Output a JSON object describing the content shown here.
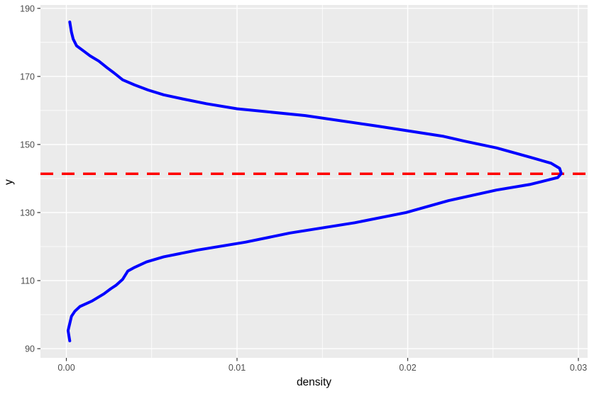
{
  "chart_data": {
    "type": "line",
    "title": "",
    "xlabel": "density",
    "ylabel": "y",
    "x_range": [
      -0.001518,
      0.030541
    ],
    "y_range": [
      87.3,
      191.0
    ],
    "x_ticks": {
      "values": [
        0.0,
        0.01,
        0.02,
        0.03
      ],
      "labels": [
        "0.00",
        "0.01",
        "0.02",
        "0.03"
      ]
    },
    "y_ticks": {
      "values": [
        90,
        110,
        130,
        150,
        170,
        190
      ],
      "labels": [
        "90",
        "110",
        "130",
        "150",
        "170",
        "190"
      ]
    },
    "x_minor_ticks": [
      0.005,
      0.015,
      0.025
    ],
    "y_minor_ticks": [
      100,
      120,
      140,
      160,
      180
    ],
    "grid": true,
    "legend": "none",
    "panel_bg": "#EBEBEB",
    "grid_color": "#FFFFFF",
    "tick_mark_color": "#333333",
    "tick_label_color": "#4D4D4D",
    "axis_title_color": "#000000",
    "series": [
      {
        "name": "density-curve",
        "color": "#0000FF",
        "stroke_width": 4,
        "points": [
          [
            0.0002,
            186.0
          ],
          [
            0.0003,
            183.0
          ],
          [
            0.0004,
            181.0
          ],
          [
            0.0006,
            179.0
          ],
          [
            0.001,
            177.5
          ],
          [
            0.0014,
            176.0
          ],
          [
            0.0019,
            174.5
          ],
          [
            0.0024,
            172.5
          ],
          [
            0.0028,
            171.0
          ],
          [
            0.0033,
            169.0
          ],
          [
            0.004,
            167.5
          ],
          [
            0.0048,
            166.0
          ],
          [
            0.0057,
            164.6
          ],
          [
            0.0068,
            163.4
          ],
          [
            0.0082,
            162.0
          ],
          [
            0.01,
            160.5
          ],
          [
            0.014,
            158.5
          ],
          [
            0.0181,
            155.5
          ],
          [
            0.0221,
            152.4
          ],
          [
            0.0233,
            151.0
          ],
          [
            0.0252,
            149.0
          ],
          [
            0.0272,
            146.2
          ],
          [
            0.0284,
            144.5
          ],
          [
            0.0289,
            143.0
          ],
          [
            0.029,
            141.5
          ],
          [
            0.0288,
            140.3
          ],
          [
            0.0272,
            138.3
          ],
          [
            0.0252,
            136.6
          ],
          [
            0.0224,
            133.5
          ],
          [
            0.0199,
            130.0
          ],
          [
            0.0169,
            127.0
          ],
          [
            0.0131,
            124.0
          ],
          [
            0.0105,
            121.3
          ],
          [
            0.0077,
            119.0
          ],
          [
            0.0057,
            117.0
          ],
          [
            0.0047,
            115.5
          ],
          [
            0.004,
            113.9
          ],
          [
            0.0036,
            112.8
          ],
          [
            0.0033,
            110.4
          ],
          [
            0.0029,
            108.6
          ],
          [
            0.0026,
            107.6
          ],
          [
            0.0022,
            106.1
          ],
          [
            0.0015,
            104.0
          ],
          [
            0.0008,
            102.4
          ],
          [
            0.0005,
            101.0
          ],
          [
            0.0003,
            99.5
          ],
          [
            0.0002,
            97.4
          ],
          [
            0.0001,
            95.3
          ],
          [
            0.0002,
            92.3
          ]
        ]
      }
    ],
    "reference_line": {
      "orientation": "horizontal",
      "y": 141.4,
      "color": "#FF0000",
      "style": "dashed",
      "stroke_width": 3.5
    }
  }
}
